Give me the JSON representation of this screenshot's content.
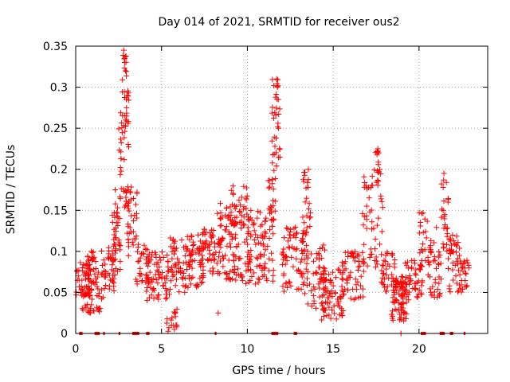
{
  "chart_data": {
    "type": "scatter",
    "title": "Day 014 of 2021, SRMTID for receiver ous2",
    "xlabel": "GPS time / hours",
    "ylabel": "SRMTID / TECUs",
    "xlim": [
      0,
      24
    ],
    "ylim": [
      0,
      0.35
    ],
    "xticks": [
      0,
      5,
      10,
      15,
      20
    ],
    "xtick_labels": [
      "0",
      "5",
      "10",
      "15",
      "20"
    ],
    "yticks": [
      0,
      0.05,
      0.1,
      0.15,
      0.2,
      0.25,
      0.3,
      0.35
    ],
    "ytick_labels": [
      "0",
      "0.05",
      "0.1",
      "0.15",
      "0.2",
      "0.25",
      "0.3",
      "0.35"
    ],
    "grid": true,
    "marker": "+",
    "color": "#ff0000",
    "zero_segments": [
      [
        0.2,
        0.4
      ],
      [
        1.1,
        1.4
      ],
      [
        1.6,
        1.7
      ],
      [
        2.5,
        2.6
      ],
      [
        3.3,
        3.7
      ],
      [
        4.1,
        4.3
      ],
      [
        8.1,
        8.2
      ],
      [
        11.4,
        11.8
      ],
      [
        12.7,
        12.9
      ],
      [
        20.1,
        20.4
      ],
      [
        21.2,
        21.5
      ],
      [
        21.8,
        22.0
      ],
      [
        22.6,
        22.7
      ]
    ],
    "clusters": [
      {
        "x": [
          0.0,
          0.9
        ],
        "y": [
          0.045,
          0.09
        ],
        "n": 40
      },
      {
        "x": [
          0.3,
          1.6
        ],
        "y": [
          0.025,
          0.06
        ],
        "n": 45
      },
      {
        "x": [
          0.6,
          1.4
        ],
        "y": [
          0.06,
          0.1
        ],
        "n": 30
      },
      {
        "x": [
          1.5,
          2.3
        ],
        "y": [
          0.05,
          0.11
        ],
        "n": 40
      },
      {
        "x": [
          2.1,
          2.6
        ],
        "y": [
          0.07,
          0.16
        ],
        "n": 40
      },
      {
        "x": [
          2.5,
          3.1
        ],
        "y": [
          0.15,
          0.3
        ],
        "n": 45
      },
      {
        "x": [
          2.7,
          3.0
        ],
        "y": [
          0.26,
          0.345
        ],
        "n": 18
      },
      {
        "x": [
          3.0,
          3.6
        ],
        "y": [
          0.09,
          0.18
        ],
        "n": 35
      },
      {
        "x": [
          3.5,
          4.3
        ],
        "y": [
          0.06,
          0.11
        ],
        "n": 35
      },
      {
        "x": [
          4.1,
          5.5
        ],
        "y": [
          0.04,
          0.1
        ],
        "n": 70
      },
      {
        "x": [
          5.3,
          5.9
        ],
        "y": [
          0.002,
          0.03
        ],
        "n": 15
      },
      {
        "x": [
          5.5,
          7.5
        ],
        "y": [
          0.05,
          0.12
        ],
        "n": 110
      },
      {
        "x": [
          7.3,
          8.4
        ],
        "y": [
          0.07,
          0.13
        ],
        "n": 55
      },
      {
        "x": [
          8.2,
          10.2
        ],
        "y": [
          0.06,
          0.16
        ],
        "n": 120
      },
      {
        "x": [
          9.0,
          10.0
        ],
        "y": [
          0.13,
          0.18
        ],
        "n": 25
      },
      {
        "x": [
          10.0,
          11.6
        ],
        "y": [
          0.06,
          0.15
        ],
        "n": 85
      },
      {
        "x": [
          11.4,
          11.9
        ],
        "y": [
          0.19,
          0.31
        ],
        "n": 35
      },
      {
        "x": [
          11.2,
          11.7
        ],
        "y": [
          0.13,
          0.19
        ],
        "n": 20
      },
      {
        "x": [
          12.0,
          13.3
        ],
        "y": [
          0.05,
          0.13
        ],
        "n": 70
      },
      {
        "x": [
          13.2,
          13.7
        ],
        "y": [
          0.12,
          0.2
        ],
        "n": 25
      },
      {
        "x": [
          13.3,
          14.6
        ],
        "y": [
          0.03,
          0.11
        ],
        "n": 60
      },
      {
        "x": [
          14.3,
          15.6
        ],
        "y": [
          0.015,
          0.08
        ],
        "n": 70
      },
      {
        "x": [
          15.5,
          16.8
        ],
        "y": [
          0.04,
          0.1
        ],
        "n": 55
      },
      {
        "x": [
          16.7,
          17.9
        ],
        "y": [
          0.08,
          0.2
        ],
        "n": 50
      },
      {
        "x": [
          17.4,
          17.8
        ],
        "y": [
          0.18,
          0.225
        ],
        "n": 15
      },
      {
        "x": [
          17.8,
          18.6
        ],
        "y": [
          0.05,
          0.1
        ],
        "n": 35
      },
      {
        "x": [
          18.4,
          19.3
        ],
        "y": [
          0.015,
          0.07
        ],
        "n": 90
      },
      {
        "x": [
          19.2,
          20.2
        ],
        "y": [
          0.04,
          0.09
        ],
        "n": 45
      },
      {
        "x": [
          20.0,
          20.6
        ],
        "y": [
          0.07,
          0.15
        ],
        "n": 25
      },
      {
        "x": [
          20.6,
          21.3
        ],
        "y": [
          0.04,
          0.13
        ],
        "n": 40
      },
      {
        "x": [
          21.3,
          21.7
        ],
        "y": [
          0.1,
          0.19
        ],
        "n": 25
      },
      {
        "x": [
          21.7,
          22.4
        ],
        "y": [
          0.05,
          0.12
        ],
        "n": 40
      },
      {
        "x": [
          22.3,
          22.9
        ],
        "y": [
          0.05,
          0.09
        ],
        "n": 25
      }
    ],
    "points": [
      [
        0.15,
        0.07
      ],
      [
        0.2,
        0.065
      ],
      [
        0.4,
        0.08
      ],
      [
        0.9,
        0.1
      ],
      [
        1.3,
        0.03
      ],
      [
        2.3,
        0.175
      ],
      [
        2.8,
        0.345
      ],
      [
        2.85,
        0.335
      ],
      [
        2.9,
        0.32
      ],
      [
        2.95,
        0.285
      ],
      [
        3.0,
        0.29
      ],
      [
        5.7,
        0.01
      ],
      [
        5.75,
        0.005
      ],
      [
        8.1,
        0.11
      ],
      [
        8.3,
        0.025
      ],
      [
        11.7,
        0.31
      ],
      [
        11.75,
        0.3
      ],
      [
        11.8,
        0.285
      ],
      [
        13.55,
        0.2
      ],
      [
        17.6,
        0.225
      ],
      [
        17.65,
        0.22
      ],
      [
        18.95,
        0.0
      ],
      [
        21.45,
        0.195
      ]
    ]
  }
}
